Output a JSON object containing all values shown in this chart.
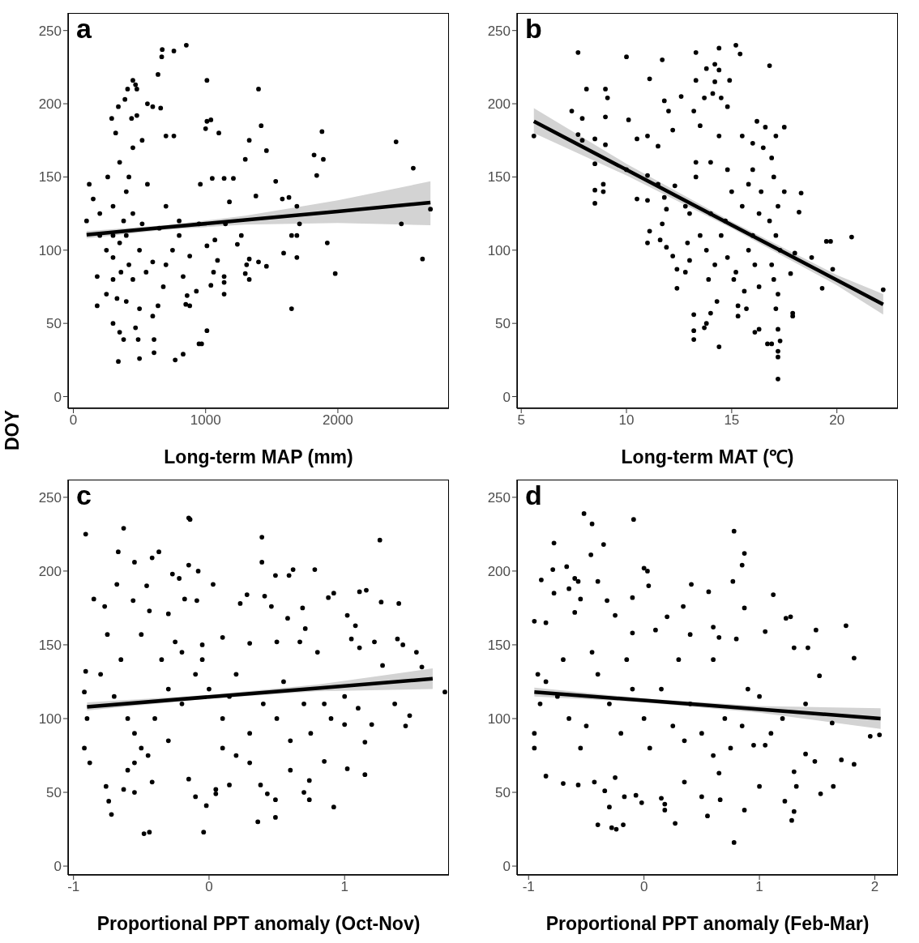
{
  "chart_data": [
    {
      "type": "scatter",
      "title": "a",
      "xlabel": "Long-term MAP (mm)",
      "ylabel": "DOY",
      "xlim": [
        -40,
        2840
      ],
      "xticks": [
        0,
        1000,
        2000
      ],
      "ylim": [
        -8,
        262
      ],
      "yticks": [
        0,
        50,
        100,
        150,
        200,
        250
      ],
      "series": [
        {
          "type": "scatter",
          "marker": "circle",
          "color": "#000000",
          "x": [
            854,
            672,
            668,
            760,
            640,
            1010,
            450,
            470,
            410,
            1400,
            480,
            390,
            560,
            340,
            600,
            660,
            1010,
            1040,
            1000,
            1880,
            1420,
            1100,
            290,
            440,
            480,
            320,
            700,
            760,
            1330,
            2440,
            1460,
            1820,
            1890,
            1300,
            2570,
            1840,
            1530,
            1050,
            1140,
            1210,
            960,
            120,
            260,
            420,
            560,
            1380,
            1580,
            1630,
            1690,
            2700,
            1180,
            2480,
            1710,
            1150,
            100,
            200,
            300,
            380,
            450,
            520,
            650,
            800,
            950,
            1270,
            1650,
            1690,
            1920,
            1010,
            1240,
            1070,
            1590,
            2640,
            1690,
            880,
            1330,
            1400,
            1460,
            1310,
            1090,
            1060,
            1300,
            1980,
            1140,
            1330,
            830,
            1040,
            1140,
            1140,
            930,
            860,
            850,
            880,
            1650,
            250,
            300,
            350,
            400,
            420,
            500,
            360,
            300,
            450,
            550,
            600,
            680,
            250,
            330,
            400,
            500,
            600,
            180,
            180,
            300,
            350,
            380,
            470,
            490,
            610,
            500,
            610,
            340,
            770,
            830,
            950,
            970,
            1010,
            400,
            350,
            450,
            520,
            300,
            200,
            150,
            700,
            750,
            800,
            700,
            640
          ],
          "values": [
            240,
            237,
            232,
            236,
            220,
            216,
            216,
            213,
            210,
            210,
            210,
            203,
            200,
            198,
            198,
            197,
            188,
            189,
            183,
            181,
            185,
            180,
            190,
            190,
            192,
            180,
            178,
            178,
            175,
            174,
            168,
            165,
            162,
            162,
            156,
            151,
            147,
            149,
            149,
            149,
            145,
            145,
            150,
            150,
            145,
            137,
            135,
            136,
            130,
            128,
            133,
            118,
            118,
            118,
            120,
            125,
            130,
            120,
            125,
            118,
            115,
            110,
            118,
            110,
            110,
            110,
            105,
            103,
            104,
            107,
            98,
            94,
            95,
            96,
            94,
            92,
            89,
            90,
            93,
            85,
            84,
            84,
            82,
            80,
            82,
            76,
            78,
            70,
            72,
            69,
            63,
            62,
            60,
            100,
            95,
            105,
            110,
            90,
            100,
            85,
            80,
            80,
            85,
            92,
            75,
            70,
            67,
            65,
            60,
            55,
            62,
            82,
            50,
            44,
            39,
            47,
            39,
            39,
            26,
            30,
            24,
            25,
            29,
            36,
            36,
            45,
            140,
            160,
            170,
            175,
            110,
            110,
            135,
            130,
            100,
            120,
            90,
            62
          ]
        },
        {
          "type": "line",
          "color": "#000000",
          "x": [
            100,
            700,
            1300,
            2000,
            2700
          ],
          "values": [
            110.5,
            115.6,
            120.6,
            126.5,
            132.5
          ],
          "lower": [
            108,
            114,
            117.5,
            118.5,
            117
          ],
          "upper": [
            113,
            117,
            123.5,
            134,
            147
          ]
        }
      ]
    },
    {
      "type": "scatter",
      "title": "b",
      "xlabel": "Long-term MAT (℃)",
      "xlim": [
        4.8,
        22.9
      ],
      "xticks": [
        5,
        10,
        15,
        20
      ],
      "ylim": [
        -8,
        262
      ],
      "yticks": [
        0,
        50,
        100,
        150,
        200,
        250
      ],
      "series": [
        {
          "type": "scatter",
          "marker": "circle",
          "color": "#000000",
          "x": [
            5.6,
            7.7,
            10.0,
            11.7,
            13.3,
            14.4,
            15.2,
            15.4,
            16.8,
            14.2,
            13.8,
            14.4,
            13.3,
            14.9,
            11.1,
            14.2,
            8.1,
            9.0,
            9.1,
            12.6,
            13.7,
            14.1,
            14.5,
            11.8,
            7.4,
            7.9,
            9.0,
            10.1,
            13.2,
            14.8,
            12.0,
            16.2,
            17.5,
            16.6,
            7.7,
            7.9,
            8.5,
            9.0,
            10.5,
            11.0,
            11.5,
            12.2,
            13.5,
            14.4,
            15.5,
            16.0,
            17.1,
            8.5,
            8.5,
            8.5,
            8.9,
            8.9,
            10.0,
            10.5,
            11.0,
            11.0,
            11.5,
            11.8,
            12.3,
            11.9,
            11.7,
            11.1,
            11.0,
            11.6,
            11.9,
            12.2,
            12.4,
            12.4,
            12.8,
            13.0,
            13.2,
            13.2,
            13.2,
            13.7,
            13.8,
            14.0,
            14.3,
            14.4,
            15.1,
            15.3,
            15.3,
            15.7,
            16.1,
            16.3,
            16.7,
            16.9,
            17.2,
            17.2,
            17.2,
            17.3,
            17.2,
            17.9,
            17.9,
            17.8,
            18.0,
            18.3,
            18.2,
            18.8,
            19.3,
            19.5,
            19.7,
            19.8,
            20.7,
            22.2,
            16.5,
            16.0,
            16.9,
            16.4,
            17.0,
            17.5,
            17.2,
            16.8,
            17.1,
            17.3,
            16.9,
            17.0,
            17.2,
            17.1,
            16.3,
            16.0,
            15.8,
            16.1,
            16.3,
            15.5,
            15.0,
            14.7,
            14.5,
            14.8,
            15.2,
            15.6,
            14.0,
            13.8,
            14.2,
            13.9,
            13.5,
            13.0,
            13.3,
            14.0,
            14.8,
            15.8,
            12.9,
            12.8,
            13.3
          ],
          "values": [
            178,
            235,
            232,
            230,
            235,
            238,
            240,
            234,
            226,
            227,
            224,
            223,
            216,
            216,
            217,
            215,
            210,
            210,
            204,
            205,
            204,
            207,
            204,
            202,
            195,
            190,
            191,
            189,
            195,
            198,
            195,
            188,
            184,
            184,
            179,
            175,
            176,
            172,
            176,
            178,
            171,
            182,
            185,
            178,
            178,
            173,
            178,
            159,
            141,
            132,
            145,
            140,
            155,
            135,
            151,
            134,
            145,
            136,
            144,
            128,
            118,
            113,
            105,
            107,
            102,
            96,
            87,
            74,
            85,
            93,
            56,
            45,
            39,
            47,
            50,
            57,
            65,
            34,
            80,
            62,
            55,
            60,
            44,
            46,
            36,
            36,
            31,
            27,
            12,
            38,
            46,
            57,
            55,
            84,
            98,
            139,
            126,
            95,
            74,
            106,
            106,
            87,
            109,
            73,
            170,
            155,
            163,
            140,
            150,
            140,
            130,
            120,
            110,
            100,
            90,
            80,
            70,
            60,
            125,
            110,
            100,
            90,
            75,
            130,
            140,
            120,
            110,
            95,
            85,
            72,
            125,
            100,
            90,
            80,
            110,
            125,
            150,
            160,
            155,
            145,
            105,
            130,
            160
          ]
        },
        {
          "type": "line",
          "color": "#000000",
          "x": [
            5.6,
            10,
            15,
            20,
            22.2
          ],
          "values": [
            188,
            154.9,
            117.2,
            79.6,
            63
          ],
          "lower": [
            180,
            151,
            115,
            76,
            56
          ],
          "upper": [
            197,
            159,
            119.5,
            83,
            70
          ]
        }
      ]
    },
    {
      "type": "scatter",
      "title": "c",
      "xlabel": "Proportional PPT anomaly (Oct-Nov)",
      "xlim": [
        -1.04,
        1.77
      ],
      "xticks": [
        -1,
        0,
        1
      ],
      "ylim": [
        -6,
        262
      ],
      "yticks": [
        0,
        50,
        100,
        150,
        200,
        250
      ],
      "series": [
        {
          "type": "scatter",
          "marker": "circle",
          "color": "#000000",
          "x": [
            -0.91,
            -0.63,
            -0.15,
            -0.14,
            0.39,
            1.26,
            -0.67,
            -0.37,
            -0.42,
            -0.55,
            -0.15,
            0.39,
            -0.08,
            0.62,
            0.78,
            0.49,
            0.59,
            -0.27,
            -0.22,
            -0.68,
            -0.46,
            0.03,
            -0.85,
            -0.18,
            -0.09,
            0.23,
            0.28,
            0.41,
            0.88,
            0.92,
            1.11,
            1.16,
            1.27,
            1.4,
            1.02,
            1.08,
            0.46,
            0.69,
            0.71,
            0.58,
            -0.77,
            -0.56,
            -0.44,
            -0.3,
            -0.75,
            -0.5,
            -0.25,
            -0.05,
            0.1,
            0.3,
            0.5,
            0.67,
            0.8,
            1.05,
            1.22,
            1.39,
            1.43,
            1.53,
            1.11,
            1.57,
            1.28,
            1.74,
            1.37,
            1.45,
            1.48,
            1.2,
            1.15,
            1.15,
            1.02,
            0.92,
            0.74,
            0.74,
            0.7,
            0.85,
            0.6,
            0.49,
            0.49,
            0.36,
            0.38,
            0.43,
            0.15,
            0.05,
            -0.04,
            -0.02,
            0.05,
            -0.1,
            -0.15,
            -0.44,
            -0.48,
            -0.42,
            -0.55,
            -0.63,
            -0.72,
            -0.74,
            -0.76,
            -0.88,
            -0.92,
            -0.9,
            -0.92,
            -0.91,
            -0.8,
            -0.7,
            -0.6,
            -0.55,
            -0.5,
            -0.55,
            -0.45,
            -0.4,
            -0.3,
            -0.2,
            -0.1,
            -0.05,
            0.0,
            0.1,
            0.2,
            0.3,
            0.2,
            0.1,
            0.4,
            0.5,
            0.55,
            0.7,
            0.75,
            0.85,
            1.0,
            1.1,
            0.9,
            0.6,
            -0.65,
            -0.35,
            -0.2,
            -0.3,
            -0.6,
            0.3,
            0.15,
            1.0
          ],
          "values": [
            225,
            229,
            236,
            235,
            223,
            221,
            213,
            213,
            209,
            206,
            204,
            206,
            200,
            201,
            201,
            197,
            197,
            198,
            195,
            191,
            190,
            191,
            181,
            181,
            180,
            178,
            184,
            183,
            182,
            185,
            186,
            187,
            179,
            178,
            170,
            163,
            176,
            175,
            161,
            168,
            176,
            180,
            173,
            171,
            157,
            157,
            152,
            150,
            155,
            151,
            152,
            152,
            145,
            154,
            152,
            154,
            150,
            145,
            148,
            135,
            136,
            118,
            110,
            95,
            102,
            96,
            84,
            62,
            66,
            40,
            45,
            58,
            50,
            71,
            65,
            45,
            33,
            30,
            55,
            49,
            55,
            52,
            23,
            41,
            49,
            47,
            59,
            23,
            22,
            57,
            50,
            52,
            35,
            44,
            54,
            70,
            80,
            100,
            118,
            132,
            130,
            115,
            100,
            90,
            80,
            70,
            75,
            100,
            120,
            110,
            130,
            140,
            120,
            100,
            130,
            90,
            75,
            80,
            110,
            100,
            125,
            110,
            90,
            110,
            115,
            107,
            100,
            85,
            140,
            140,
            145,
            85,
            65,
            70,
            115,
            96
          ]
        },
        {
          "type": "line",
          "color": "#000000",
          "x": [
            -0.9,
            0,
            0.8,
            1.65
          ],
          "values": [
            108,
            114.7,
            120.6,
            127
          ],
          "lower": [
            105.5,
            113.5,
            118.5,
            120
          ],
          "upper": [
            111,
            116,
            123,
            134
          ]
        }
      ]
    },
    {
      "type": "scatter",
      "title": "d",
      "xlabel": "Proportional PPT anomaly (Feb-Mar)",
      "xlim": [
        -1.1,
        2.2
      ],
      "xticks": [
        -1,
        0,
        1,
        2
      ],
      "ylim": [
        -6,
        262
      ],
      "yticks": [
        0,
        50,
        100,
        150,
        200,
        250
      ],
      "series": [
        {
          "type": "scatter",
          "marker": "circle",
          "color": "#000000",
          "x": [
            -0.52,
            -0.45,
            -0.09,
            0.78,
            -0.78,
            -0.35,
            0.87,
            -0.46,
            0.85,
            -0.67,
            -0.79,
            0.0,
            0.03,
            -0.89,
            -0.6,
            -0.57,
            -0.4,
            0.77,
            -0.65,
            0.04,
            0.41,
            -0.78,
            0.56,
            1.12,
            -0.55,
            -0.32,
            -0.1,
            0.34,
            0.87,
            1.23,
            1.27,
            1.49,
            1.75,
            1.82,
            -0.95,
            -0.85,
            -0.6,
            -0.25,
            -0.1,
            0.1,
            0.2,
            0.4,
            0.6,
            0.65,
            0.8,
            1.05,
            1.3,
            1.42,
            1.52,
            1.63,
            1.96,
            2.04,
            1.82,
            1.71,
            1.64,
            1.53,
            1.4,
            1.48,
            1.3,
            1.32,
            1.3,
            1.28,
            1.22,
            1.0,
            0.87,
            0.78,
            0.55,
            0.5,
            0.66,
            0.27,
            0.18,
            0.18,
            0.15,
            -0.02,
            -0.07,
            -0.17,
            -0.18,
            -0.24,
            -0.28,
            -0.3,
            -0.34,
            -0.4,
            -0.43,
            -0.57,
            -0.7,
            -0.85,
            -0.95,
            -0.95,
            -0.9,
            -0.92,
            -0.85,
            -0.75,
            -0.65,
            -0.55,
            -0.5,
            -0.4,
            -0.3,
            -0.2,
            -0.1,
            0.0,
            0.05,
            0.15,
            0.25,
            0.35,
            0.4,
            0.5,
            0.6,
            0.7,
            0.75,
            0.85,
            0.9,
            1.0,
            1.1,
            1.2,
            1.4,
            0.6,
            0.3,
            -0.15,
            -0.45,
            -0.7,
            0.95,
            1.05,
            0.65,
            0.35,
            -0.25
          ],
          "values": [
            239,
            232,
            235,
            227,
            219,
            218,
            212,
            211,
            204,
            203,
            201,
            202,
            200,
            194,
            195,
            193,
            193,
            193,
            188,
            190,
            191,
            185,
            186,
            184,
            181,
            180,
            182,
            176,
            175,
            168,
            169,
            160,
            163,
            141,
            166,
            165,
            172,
            170,
            158,
            160,
            169,
            157,
            162,
            155,
            154,
            159,
            148,
            148,
            129,
            97,
            88,
            89,
            69,
            72,
            54,
            49,
            76,
            71,
            64,
            54,
            37,
            31,
            44,
            54,
            38,
            16,
            34,
            47,
            45,
            29,
            38,
            42,
            46,
            43,
            48,
            47,
            28,
            25,
            26,
            40,
            51,
            28,
            57,
            55,
            56,
            61,
            80,
            90,
            110,
            130,
            125,
            115,
            100,
            80,
            95,
            130,
            110,
            90,
            120,
            100,
            80,
            120,
            95,
            85,
            110,
            90,
            75,
            100,
            80,
            95,
            120,
            115,
            90,
            100,
            110,
            140,
            140,
            140,
            145,
            140,
            82,
            82,
            63,
            57,
            60
          ]
        },
        {
          "type": "line",
          "color": "#000000",
          "x": [
            -0.95,
            0,
            1,
            2.05
          ],
          "values": [
            118,
            112.3,
            106.3,
            100
          ],
          "lower": [
            115,
            111,
            104,
            93
          ],
          "upper": [
            121,
            113.6,
            108.5,
            107
          ]
        }
      ]
    }
  ]
}
